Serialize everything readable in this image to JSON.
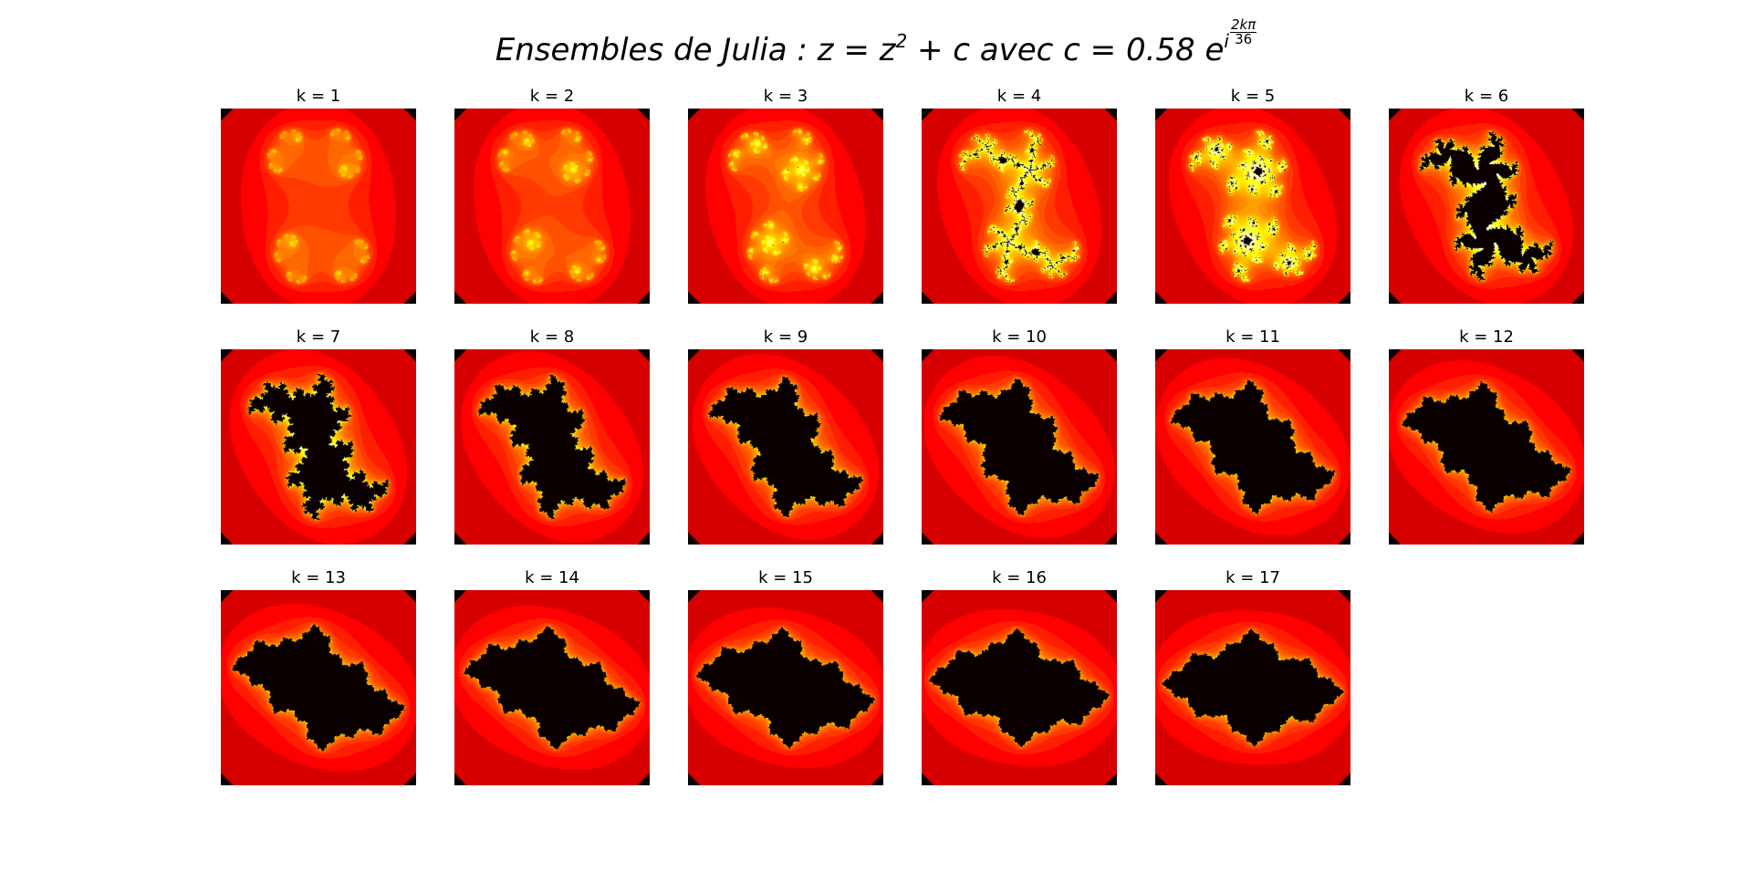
{
  "figure": {
    "title_prefix": "Ensembles de Julia  :  z = z",
    "title_exp": "2",
    "title_mid": " + c avec c = 0.58 e",
    "title_exp_prefix": "i",
    "title_frac_num": "2kπ",
    "title_frac_den": "36"
  },
  "panels": [
    {
      "label": "k = 1",
      "k": 1
    },
    {
      "label": "k = 2",
      "k": 2
    },
    {
      "label": "k = 3",
      "k": 3
    },
    {
      "label": "k = 4",
      "k": 4
    },
    {
      "label": "k = 5",
      "k": 5
    },
    {
      "label": "k = 6",
      "k": 6
    },
    {
      "label": "k = 7",
      "k": 7
    },
    {
      "label": "k = 8",
      "k": 8
    },
    {
      "label": "k = 9",
      "k": 9
    },
    {
      "label": "k = 10",
      "k": 10
    },
    {
      "label": "k = 11",
      "k": 11
    },
    {
      "label": "k = 12",
      "k": 12
    },
    {
      "label": "k = 13",
      "k": 13
    },
    {
      "label": "k = 14",
      "k": 14
    },
    {
      "label": "k = 15",
      "k": 15
    },
    {
      "label": "k = 16",
      "k": 16
    },
    {
      "label": "k = 17",
      "k": 17
    }
  ],
  "render": {
    "modulus": 0.58,
    "divisions": 36,
    "colormap": "hot"
  }
}
